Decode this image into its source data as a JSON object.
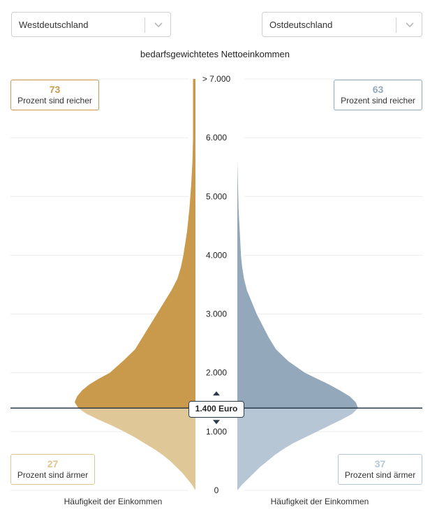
{
  "selectors": {
    "left": {
      "value": "Westdeutschland"
    },
    "right": {
      "value": "Ostdeutschland"
    }
  },
  "chart_data": {
    "type": "area",
    "title": "bedarfsgewichtetes Nettoeinkommen",
    "y_axis": {
      "ticks": [
        "0",
        "1.000",
        "2.000",
        "3.000",
        "4.000",
        "5.000",
        "6.000",
        "> 7.000"
      ],
      "range": [
        0,
        7000
      ]
    },
    "x_labels": {
      "left": "Häufigkeit der Einkommen",
      "right": "Häufigkeit der Einkommen"
    },
    "threshold": {
      "value": 1400,
      "label": "1.400 Euro"
    },
    "series": [
      {
        "name": "Westdeutschland",
        "color_above": "#c99a4b",
        "color_below": "#e0c798",
        "density": [
          [
            0,
            0.0
          ],
          [
            100,
            0.03
          ],
          [
            200,
            0.07
          ],
          [
            300,
            0.11
          ],
          [
            400,
            0.16
          ],
          [
            500,
            0.21
          ],
          [
            600,
            0.27
          ],
          [
            700,
            0.34
          ],
          [
            800,
            0.42
          ],
          [
            900,
            0.5
          ],
          [
            1000,
            0.59
          ],
          [
            1100,
            0.69
          ],
          [
            1200,
            0.8
          ],
          [
            1300,
            0.9
          ],
          [
            1400,
            0.97
          ],
          [
            1500,
            1.0
          ],
          [
            1600,
            0.98
          ],
          [
            1700,
            0.94
          ],
          [
            1800,
            0.88
          ],
          [
            1900,
            0.8
          ],
          [
            2000,
            0.71
          ],
          [
            2200,
            0.6
          ],
          [
            2400,
            0.5
          ],
          [
            2600,
            0.44
          ],
          [
            2800,
            0.38
          ],
          [
            3000,
            0.32
          ],
          [
            3200,
            0.26
          ],
          [
            3400,
            0.2
          ],
          [
            3600,
            0.15
          ],
          [
            3800,
            0.12
          ],
          [
            4000,
            0.1
          ],
          [
            4400,
            0.07
          ],
          [
            4800,
            0.05
          ],
          [
            5200,
            0.035
          ],
          [
            5600,
            0.025
          ],
          [
            6000,
            0.02
          ],
          [
            6400,
            0.02
          ],
          [
            6800,
            0.02
          ],
          [
            7000,
            0.02
          ]
        ]
      },
      {
        "name": "Ostdeutschland",
        "color_above": "#94a8bb",
        "color_below": "#b6c6d4",
        "density": [
          [
            0,
            0.0
          ],
          [
            100,
            0.04
          ],
          [
            200,
            0.09
          ],
          [
            300,
            0.14
          ],
          [
            400,
            0.19
          ],
          [
            500,
            0.25
          ],
          [
            600,
            0.31
          ],
          [
            700,
            0.38
          ],
          [
            800,
            0.46
          ],
          [
            900,
            0.56
          ],
          [
            1000,
            0.66
          ],
          [
            1100,
            0.76
          ],
          [
            1200,
            0.86
          ],
          [
            1300,
            0.95
          ],
          [
            1400,
            1.0
          ],
          [
            1500,
            0.98
          ],
          [
            1600,
            0.93
          ],
          [
            1700,
            0.85
          ],
          [
            1800,
            0.76
          ],
          [
            1900,
            0.66
          ],
          [
            2000,
            0.56
          ],
          [
            2200,
            0.42
          ],
          [
            2400,
            0.32
          ],
          [
            2600,
            0.26
          ],
          [
            2800,
            0.21
          ],
          [
            3000,
            0.16
          ],
          [
            3200,
            0.12
          ],
          [
            3400,
            0.08
          ],
          [
            3600,
            0.055
          ],
          [
            3800,
            0.04
          ],
          [
            4000,
            0.03
          ],
          [
            4400,
            0.02
          ],
          [
            4800,
            0.01
          ],
          [
            5200,
            0.005
          ],
          [
            5600,
            0.0
          ],
          [
            6000,
            0.0
          ],
          [
            6400,
            0.0
          ],
          [
            6800,
            0.0
          ],
          [
            7000,
            0.0
          ]
        ]
      }
    ],
    "annotations": {
      "west": {
        "above_percent": "73",
        "below_percent": "27"
      },
      "east": {
        "above_percent": "63",
        "below_percent": "37"
      },
      "above_text": "Prozent sind reicher",
      "below_text": "Prozent sind ärmer"
    }
  },
  "colors": {
    "axis": "#222222",
    "threshold_line": "#2b3a4a",
    "gridline": "#ececec"
  },
  "icons": {
    "dropdown": "chevron-down-icon",
    "threshold_up": "triangle-up-icon",
    "threshold_down": "triangle-down-icon"
  }
}
